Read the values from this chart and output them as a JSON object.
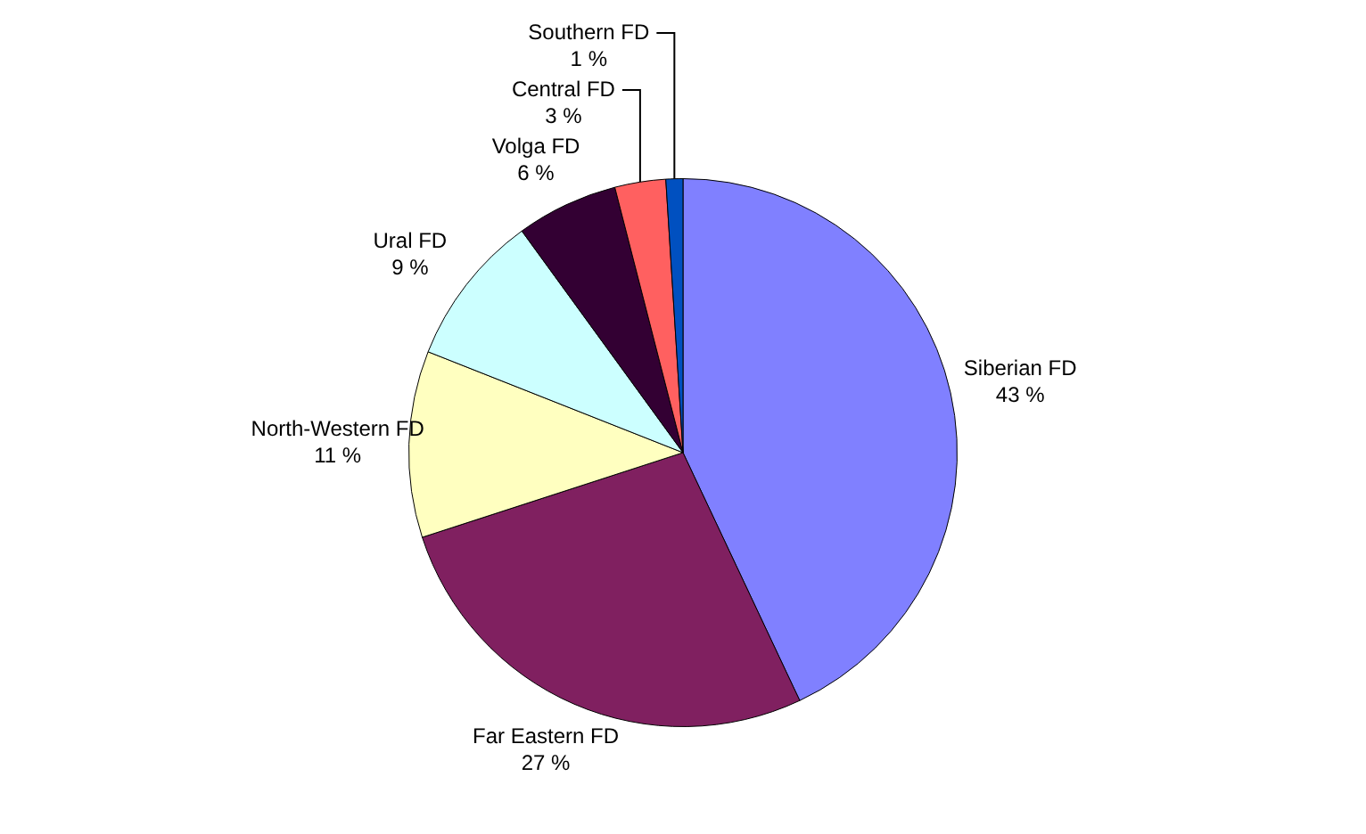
{
  "chart_data": {
    "type": "pie",
    "categories": [
      "Siberian FD",
      "Far Eastern FD",
      "North-Western FD",
      "Ural FD",
      "Volga FD",
      "Central FD",
      "Southern FD"
    ],
    "values": [
      43,
      27,
      11,
      9,
      6,
      3,
      1
    ],
    "value_labels": [
      "43 %",
      "27 %",
      "11 %",
      "9 %",
      "6 %",
      "3 %",
      "1 %"
    ],
    "colors": [
      "#8080ff",
      "#802060",
      "#ffffc0",
      "#ccffff",
      "#330033",
      "#ff6060",
      "#0050c0"
    ],
    "legend": false
  }
}
